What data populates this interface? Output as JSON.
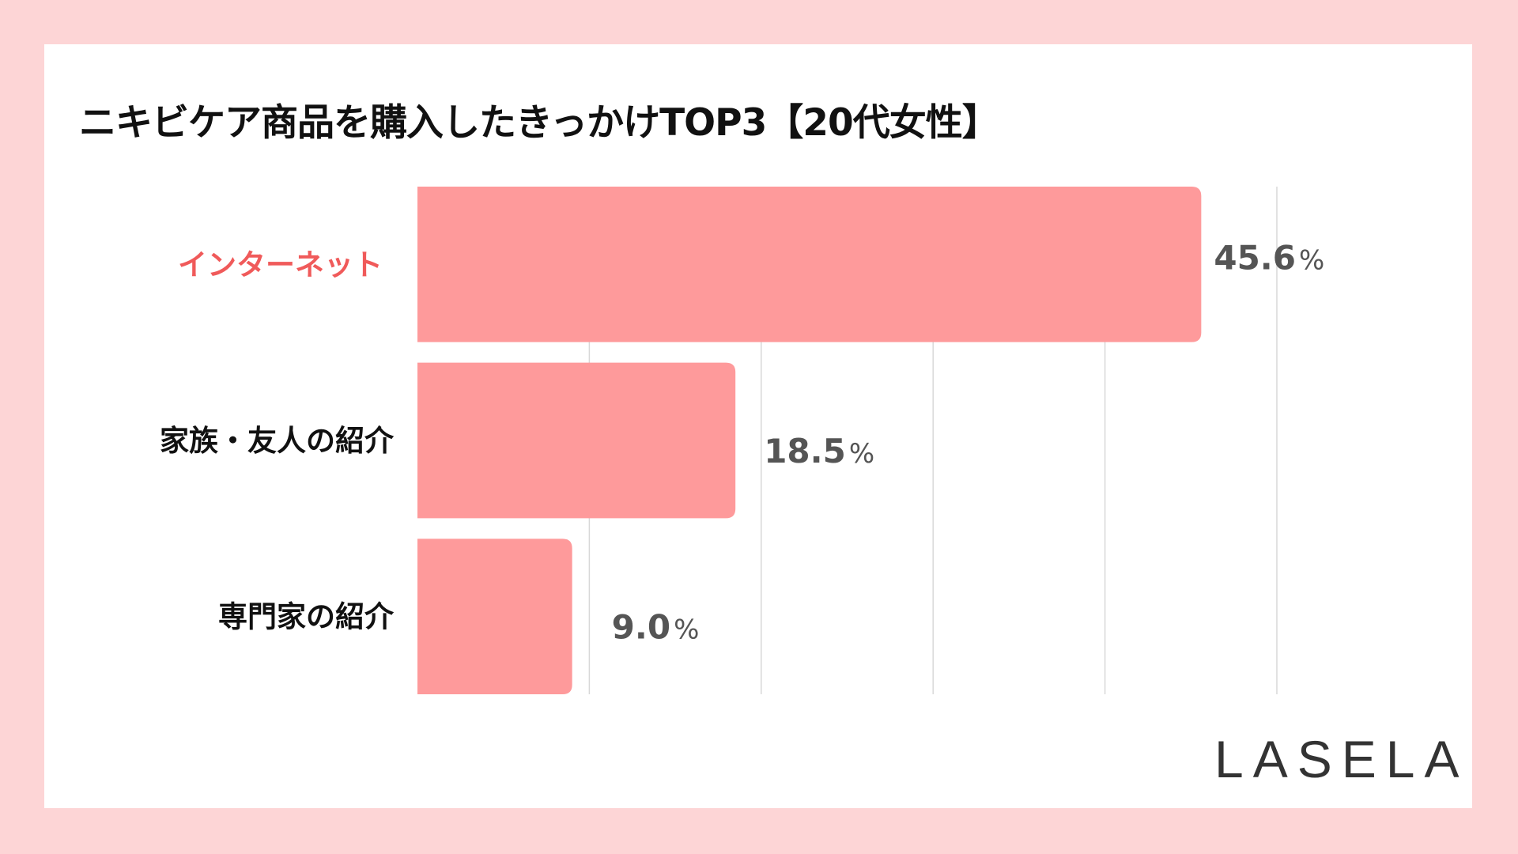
{
  "chart_data": {
    "type": "bar",
    "orientation": "horizontal",
    "title": "ニキビケア商品を購入したきっかけTOP3【20代女性】",
    "categories": [
      "インターネット",
      "家族・友人の紹介",
      "専門家の紹介"
    ],
    "values": [
      45.6,
      18.5,
      9.0
    ],
    "value_labels": [
      "45.6",
      "18.5",
      "9.0"
    ],
    "unit": "%",
    "xlim": [
      0,
      50
    ],
    "grid": true,
    "highlight_category": "インターネット",
    "colors": {
      "bar": "#fe9a9b",
      "highlight_label": "#f05a5a",
      "label": "#111111",
      "value": "#555555",
      "grid": "#d8d8d8",
      "background": "#fdd5d6"
    }
  },
  "brand": "LASELA"
}
